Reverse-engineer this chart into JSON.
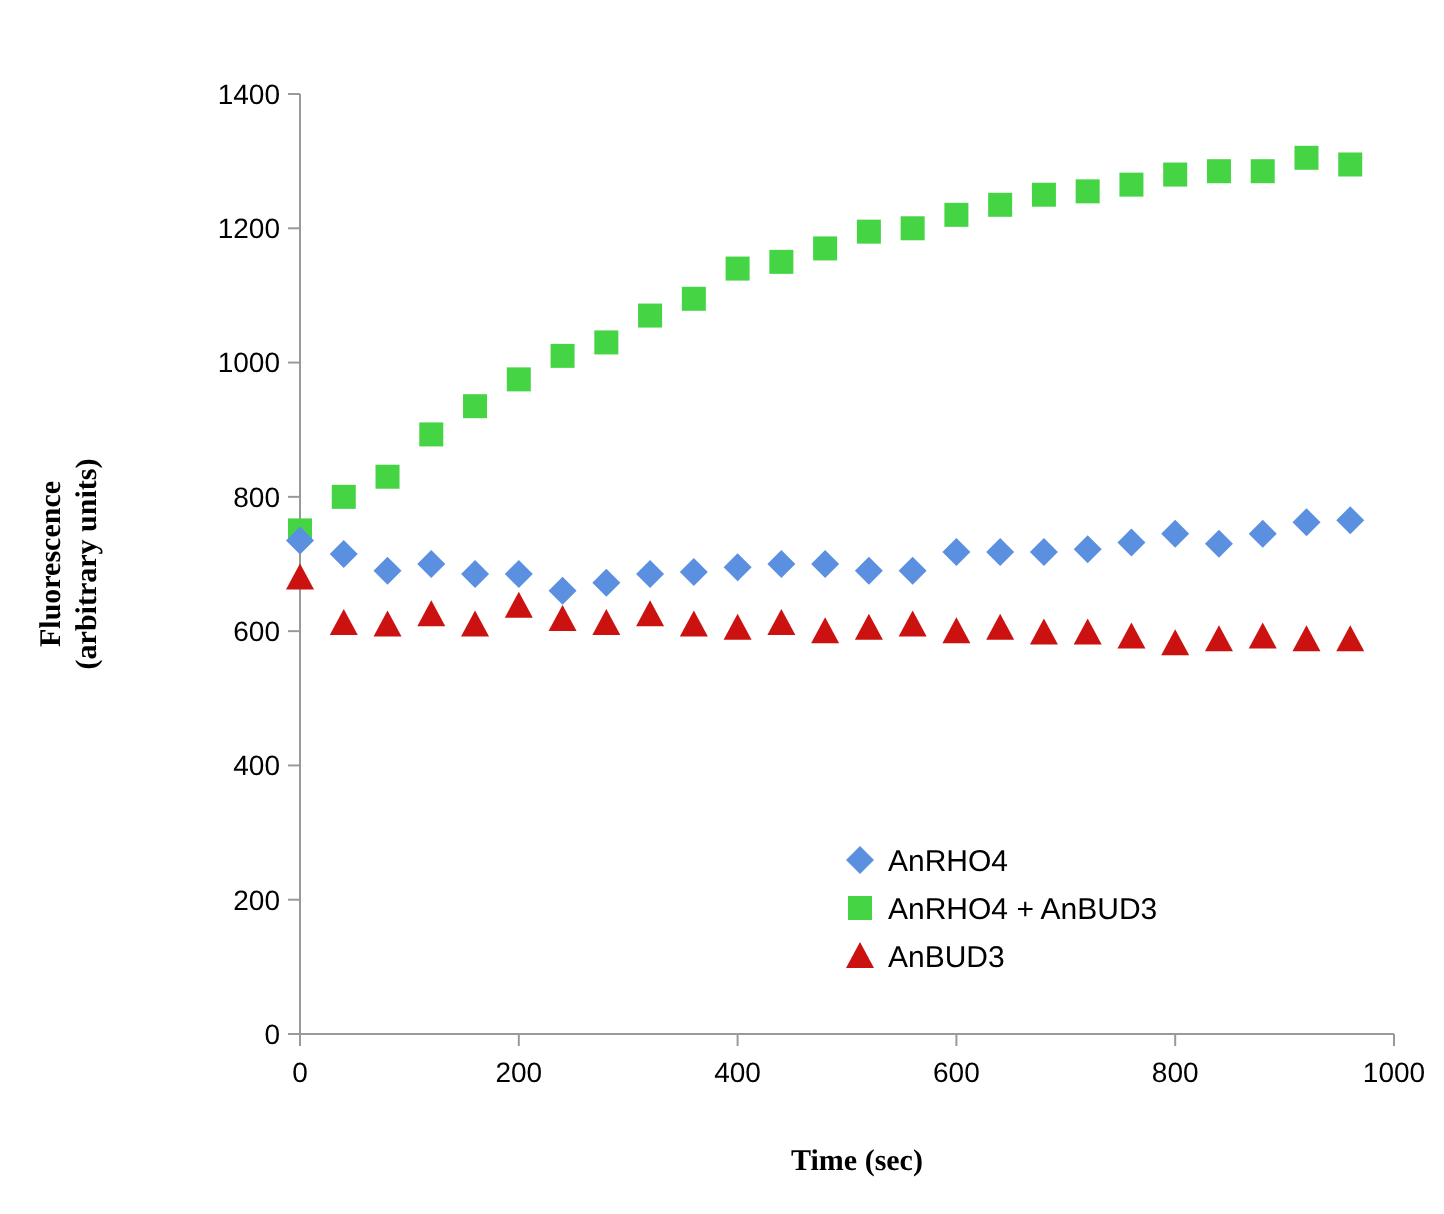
{
  "chart_data": {
    "type": "scatter",
    "xlabel": "Time (sec)",
    "ylabel": "Fluorescence\n(arbitrary units)",
    "x": [
      0,
      40,
      80,
      120,
      160,
      200,
      240,
      280,
      320,
      360,
      400,
      440,
      480,
      520,
      560,
      600,
      640,
      680,
      720,
      760,
      800,
      840,
      880,
      920,
      960
    ],
    "series": [
      {
        "name": "AnRHO4",
        "color": "#5b8fe0",
        "marker": "diamond",
        "values": [
          735,
          715,
          690,
          700,
          685,
          685,
          660,
          672,
          685,
          688,
          695,
          700,
          700,
          690,
          690,
          718,
          718,
          718,
          722,
          732,
          745,
          730,
          745,
          762,
          765
        ]
      },
      {
        "name": "AnRHO4 + AnBUD3",
        "color": "#44d444",
        "marker": "square",
        "values": [
          750,
          800,
          830,
          893,
          935,
          975,
          1010,
          1030,
          1070,
          1095,
          1140,
          1150,
          1170,
          1195,
          1200,
          1220,
          1235,
          1250,
          1255,
          1265,
          1280,
          1285,
          1285,
          1305,
          1295
        ]
      },
      {
        "name": "AnBUD3",
        "color": "#cc1111",
        "marker": "triangle",
        "values": [
          680,
          612,
          610,
          625,
          610,
          638,
          618,
          612,
          625,
          610,
          605,
          612,
          600,
          605,
          610,
          600,
          605,
          598,
          598,
          592,
          582,
          588,
          592,
          588,
          588
        ]
      }
    ],
    "xlim": [
      0,
      1000
    ],
    "xticks": [
      0,
      200,
      400,
      600,
      800,
      1000
    ],
    "ylim": [
      0,
      1400
    ],
    "yticks": [
      0,
      200,
      400,
      600,
      800,
      1000,
      1200,
      1400
    ],
    "grid": false,
    "legend": "bottom right"
  }
}
